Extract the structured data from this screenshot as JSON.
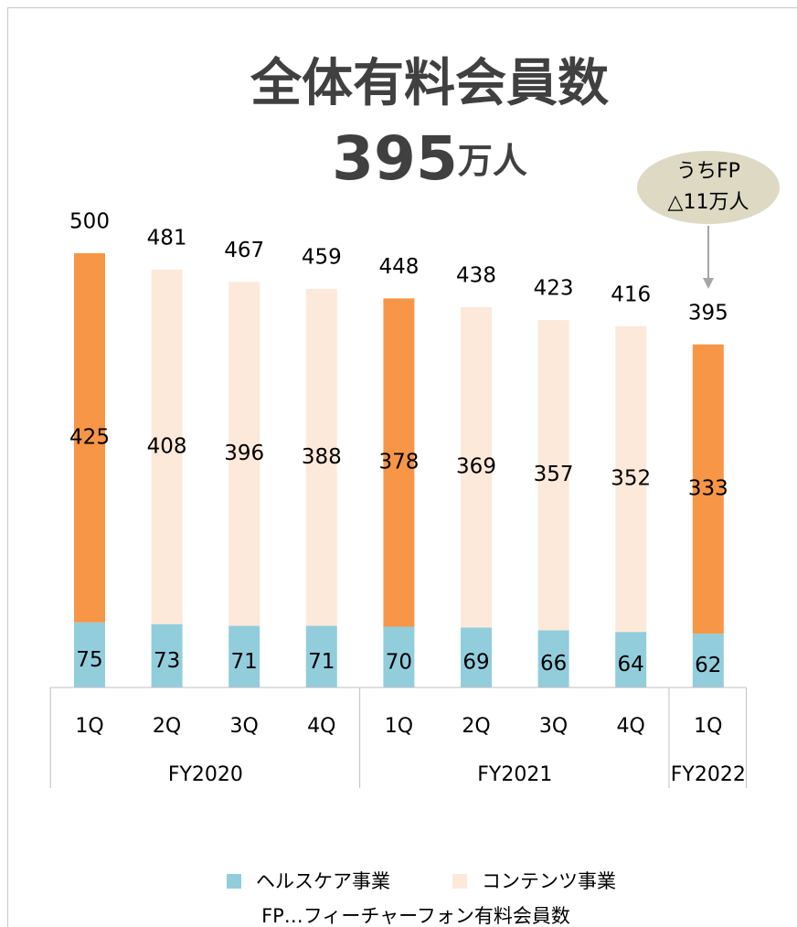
{
  "chart_data": {
    "type": "stacked_bar",
    "title": "全体有料会員数",
    "subtitle": "395",
    "subtitle_unit": "万人",
    "annotation": [
      "うちFP",
      "△11万人"
    ],
    "footnote": "FP…フィーチャーフォン有料会員数",
    "groups": [
      {
        "label": "FY2020",
        "categories": [
          "1Q",
          "2Q",
          "3Q",
          "4Q"
        ]
      },
      {
        "label": "FY2021",
        "categories": [
          "1Q",
          "2Q",
          "3Q",
          "4Q"
        ]
      },
      {
        "label": "FY2022",
        "categories": [
          "1Q"
        ]
      }
    ],
    "series": [
      {
        "name": "ヘルスケア事業",
        "color": "#92cddc",
        "values": [
          75,
          73,
          71,
          71,
          70,
          69,
          66,
          64,
          62
        ]
      },
      {
        "name": "コンテンツ事業",
        "color": "#fde9d9",
        "values": [
          425,
          408,
          396,
          388,
          378,
          369,
          357,
          352,
          333
        ],
        "point_colors": [
          "#f79646",
          "#fde9d9",
          "#fde9d9",
          "#fde9d9",
          "#f79646",
          "#fde9d9",
          "#fde9d9",
          "#fde9d9",
          "#f79646"
        ]
      }
    ],
    "totals": [
      500,
      481,
      467,
      459,
      448,
      438,
      423,
      416,
      395
    ],
    "ylim": [
      0,
      500
    ]
  }
}
